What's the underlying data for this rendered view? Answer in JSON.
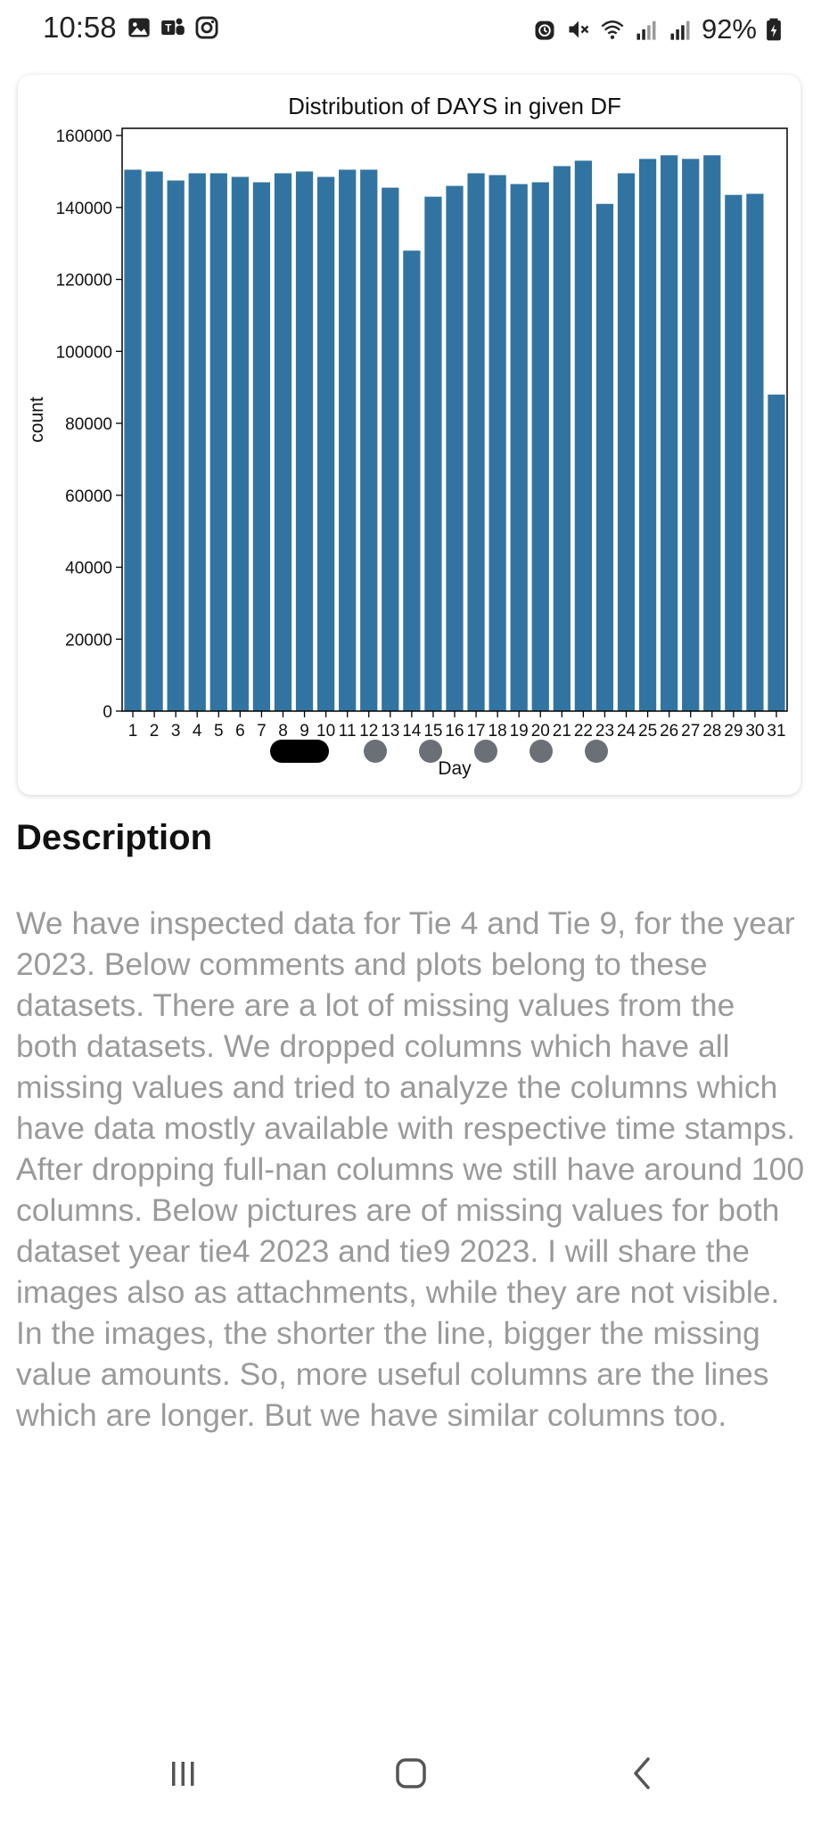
{
  "status_bar": {
    "time": "10:58",
    "battery": "92%",
    "left_icons": [
      "gallery-icon",
      "teams-icon",
      "instagram-icon"
    ],
    "right_icons": [
      "alarm-icon",
      "mute-icon",
      "wifi-icon",
      "signal-icon",
      "signal-icon",
      "battery-icon"
    ]
  },
  "chart_data": {
    "type": "bar",
    "title": "Distribution of DAYS in given DF",
    "xlabel": "Day",
    "ylabel": "count",
    "categories": [
      "1",
      "2",
      "3",
      "4",
      "5",
      "6",
      "7",
      "8",
      "9",
      "10",
      "11",
      "12",
      "13",
      "14",
      "15",
      "16",
      "17",
      "18",
      "19",
      "20",
      "21",
      "22",
      "23",
      "24",
      "25",
      "26",
      "27",
      "28",
      "29",
      "30",
      "31"
    ],
    "values": [
      150500,
      150000,
      147500,
      149500,
      149500,
      148500,
      147000,
      149500,
      150000,
      148500,
      150500,
      150500,
      145500,
      128000,
      143000,
      146000,
      149500,
      149000,
      146500,
      147000,
      151500,
      153000,
      141000,
      149500,
      153500,
      154500,
      153500,
      154500,
      143500,
      143800,
      88000
    ],
    "yticks": [
      0,
      20000,
      40000,
      60000,
      80000,
      100000,
      120000,
      140000,
      160000
    ],
    "ylim": [
      0,
      162000
    ],
    "bar_color": "#3274a1",
    "grid": false
  },
  "carousel": {
    "count": 6,
    "active_index": 0
  },
  "description": {
    "title": "Description",
    "body": "We have inspected data for Tie 4 and Tie 9, for the year 2023. Below comments and plots belong to these datasets. There are a lot of missing values from the both datasets. We dropped columns which have all missing values and tried to analyze the columns which have data mostly available with respective time stamps. After dropping full-nan columns we still have around 100 columns. Below pictures are of missing values for both dataset year tie4 2023 and tie9 2023. I will share the images also as attachments, while they are not visible. In the images, the shorter the line, bigger the missing value amounts. So, more useful columns are the lines which are longer. But we have similar columns too."
  },
  "nav_bar": {
    "items": [
      "recent-apps-icon",
      "home-icon",
      "back-icon"
    ]
  }
}
